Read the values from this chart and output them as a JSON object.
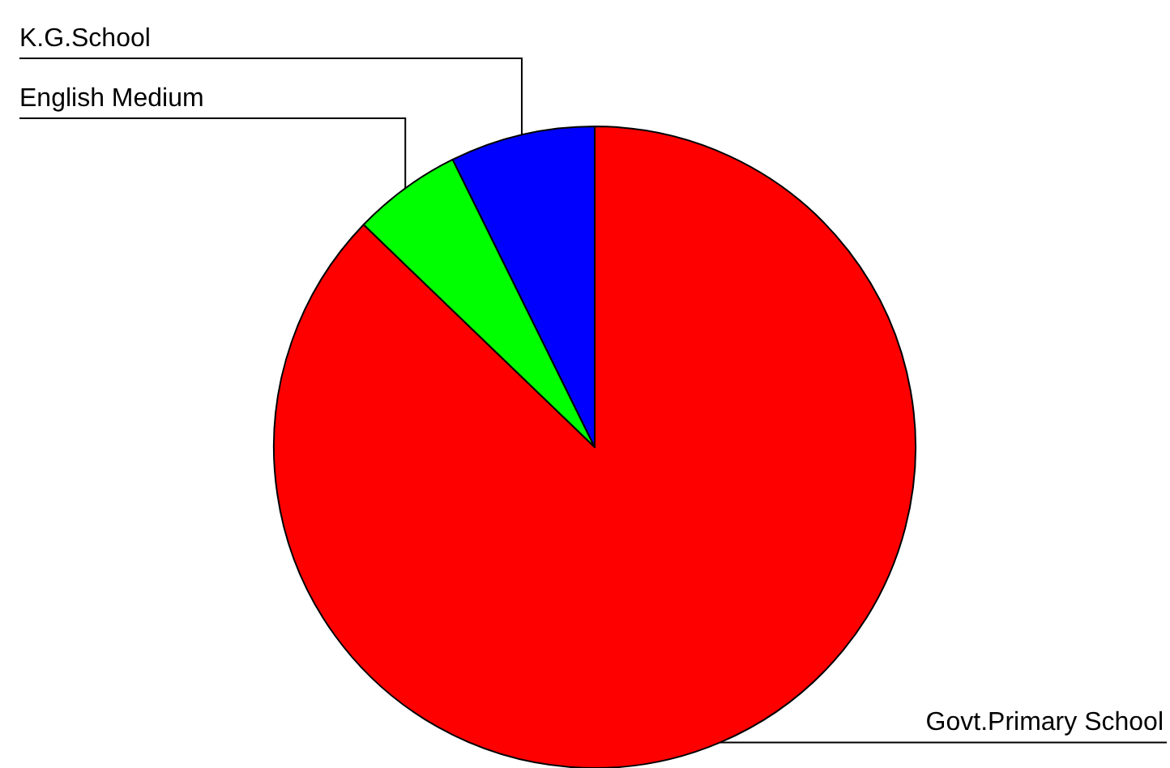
{
  "chart_data": {
    "type": "pie",
    "categories": [
      "Govt.Primary School",
      "English Medium",
      "K.G.School"
    ],
    "values": [
      87.2,
      5.5,
      7.3
    ],
    "colors": [
      "#ff0000",
      "#00ff00",
      "#0000ff"
    ]
  }
}
